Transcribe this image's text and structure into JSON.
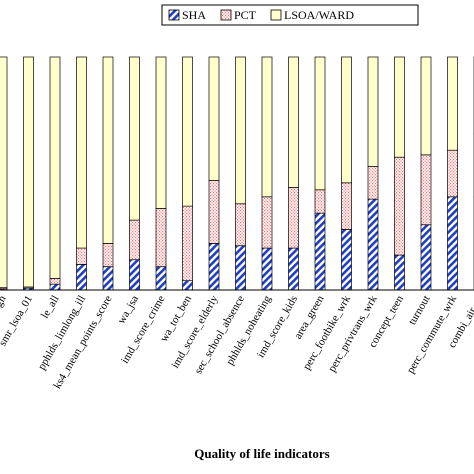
{
  "chart_data": {
    "type": "bar",
    "stacked": true,
    "percent_stacked": true,
    "xlabel": "Quality of life indicators",
    "ylabel": "",
    "ylim": [
      0,
      100
    ],
    "legend_position": "top-right",
    "categories": [
      "ugh",
      "smr_lsoa_01",
      "le_all",
      "pphlds_limlong_ill",
      "ks4_mean_points_score",
      "wa_jsa",
      "imd_score_crime",
      "wa_tot_ben",
      "imd_score_elderly",
      "sec_school_absence",
      "phhlds_noheating",
      "imd_score_kids",
      "area_green",
      "perc_footbike_wrk",
      "perc_privtrans_wrk",
      "concept_teen",
      "turnout",
      "perc_commute_wrk",
      "combi_air_..."
    ],
    "series": [
      {
        "name": "SHA",
        "color": "#1f3fbf",
        "pattern": "diagonal-hatch",
        "values": [
          0.5,
          0.8,
          2.5,
          11,
          10,
          13,
          10,
          4,
          20,
          19,
          18,
          18,
          33,
          26,
          39,
          15,
          28,
          40,
          40
        ]
      },
      {
        "name": "PCT",
        "color": "#ff7f7f",
        "pattern": "dotted",
        "values": [
          0.5,
          0.5,
          2.5,
          7,
          10,
          17,
          25,
          32,
          27,
          18,
          22,
          26,
          10,
          20,
          14,
          42,
          30,
          20,
          27
        ]
      },
      {
        "name": "LSOA/WARD",
        "color": "#ffffcc",
        "pattern": "solid",
        "values": [
          99,
          98.7,
          95,
          82,
          80,
          70,
          65,
          64,
          53,
          63,
          60,
          56,
          57,
          54,
          47,
          43,
          42,
          40,
          33
        ]
      }
    ]
  }
}
